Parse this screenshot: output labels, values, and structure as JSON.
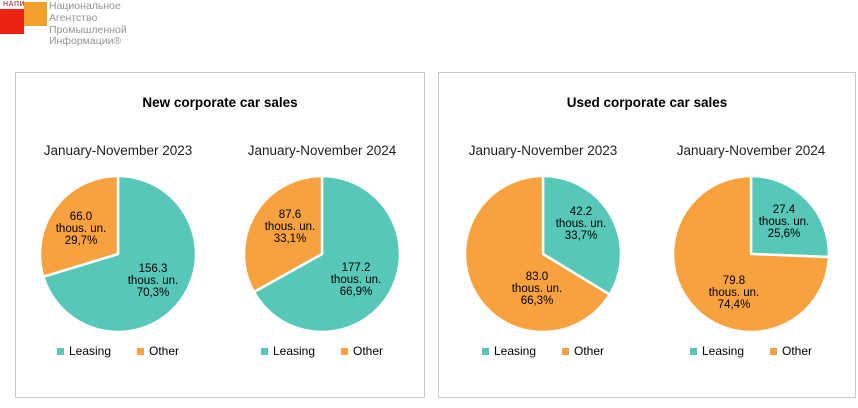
{
  "logo": {
    "acronym": "НАПИ",
    "name_lines": [
      "Национальное",
      "Агентство",
      "Промышленной",
      "Информации®"
    ],
    "acronym_color": "#B4524B",
    "square_red": "#EC2313",
    "square_orange": "#F2A22C",
    "name_color": "#90959A"
  },
  "series_colors": {
    "Leasing": "#57C7B7",
    "Other": "#F8A13F"
  },
  "panel_border_color": "#C9C9C9",
  "legend": {
    "items": [
      {
        "label": "Leasing",
        "series": "Leasing"
      },
      {
        "label": "Other",
        "series": "Other"
      }
    ]
  },
  "chart_data": [
    {
      "type": "pie",
      "title": "New corporate car sales",
      "legend_position": "bottom",
      "unit": "thous. un.",
      "charts": [
        {
          "subtitle": "January-November 2023",
          "slices": [
            {
              "name": "Leasing",
              "value": 156.3,
              "value_label": "156.3",
              "unit": "thous. un.",
              "percent": 70.3,
              "percent_label": "70,3%",
              "label_offset": [
                35,
                26
              ]
            },
            {
              "name": "Other",
              "value": 66.0,
              "value_label": "66.0",
              "unit": "thous. un.",
              "percent": 29.7,
              "percent_label": "29,7%",
              "label_offset": [
                -37,
                -26
              ]
            }
          ]
        },
        {
          "subtitle": "January-November 2024",
          "slices": [
            {
              "name": "Leasing",
              "value": 177.2,
              "value_label": "177.2",
              "unit": "thous. un.",
              "percent": 66.9,
              "percent_label": "66,9%",
              "label_offset": [
                34,
                25
              ]
            },
            {
              "name": "Other",
              "value": 87.6,
              "value_label": "87.6",
              "unit": "thous. un.",
              "percent": 33.1,
              "percent_label": "33,1%",
              "label_offset": [
                -32,
                -28
              ]
            }
          ]
        }
      ]
    },
    {
      "type": "pie",
      "title": "Used corporate car sales",
      "legend_position": "bottom",
      "unit": "thous. un.",
      "charts": [
        {
          "subtitle": "January-November 2023",
          "slices": [
            {
              "name": "Leasing",
              "value": 42.2,
              "value_label": "42.2",
              "unit": "thous. un.",
              "percent": 33.7,
              "percent_label": "33,7%",
              "label_offset": [
                38,
                -31
              ]
            },
            {
              "name": "Other",
              "value": 83.0,
              "value_label": "83.0",
              "unit": "thous. un.",
              "percent": 66.3,
              "percent_label": "66,3%",
              "label_offset": [
                -6,
                34
              ]
            }
          ]
        },
        {
          "subtitle": "January-November 2024",
          "slices": [
            {
              "name": "Leasing",
              "value": 27.4,
              "value_label": "27.4",
              "unit": "thous. un.",
              "percent": 25.6,
              "percent_label": "25,6%",
              "label_offset": [
                33,
                -33
              ]
            },
            {
              "name": "Other",
              "value": 79.8,
              "value_label": "79.8",
              "unit": "thous. un.",
              "percent": 74.4,
              "percent_label": "74,4%",
              "label_offset": [
                -17,
                38
              ]
            }
          ]
        }
      ]
    }
  ]
}
